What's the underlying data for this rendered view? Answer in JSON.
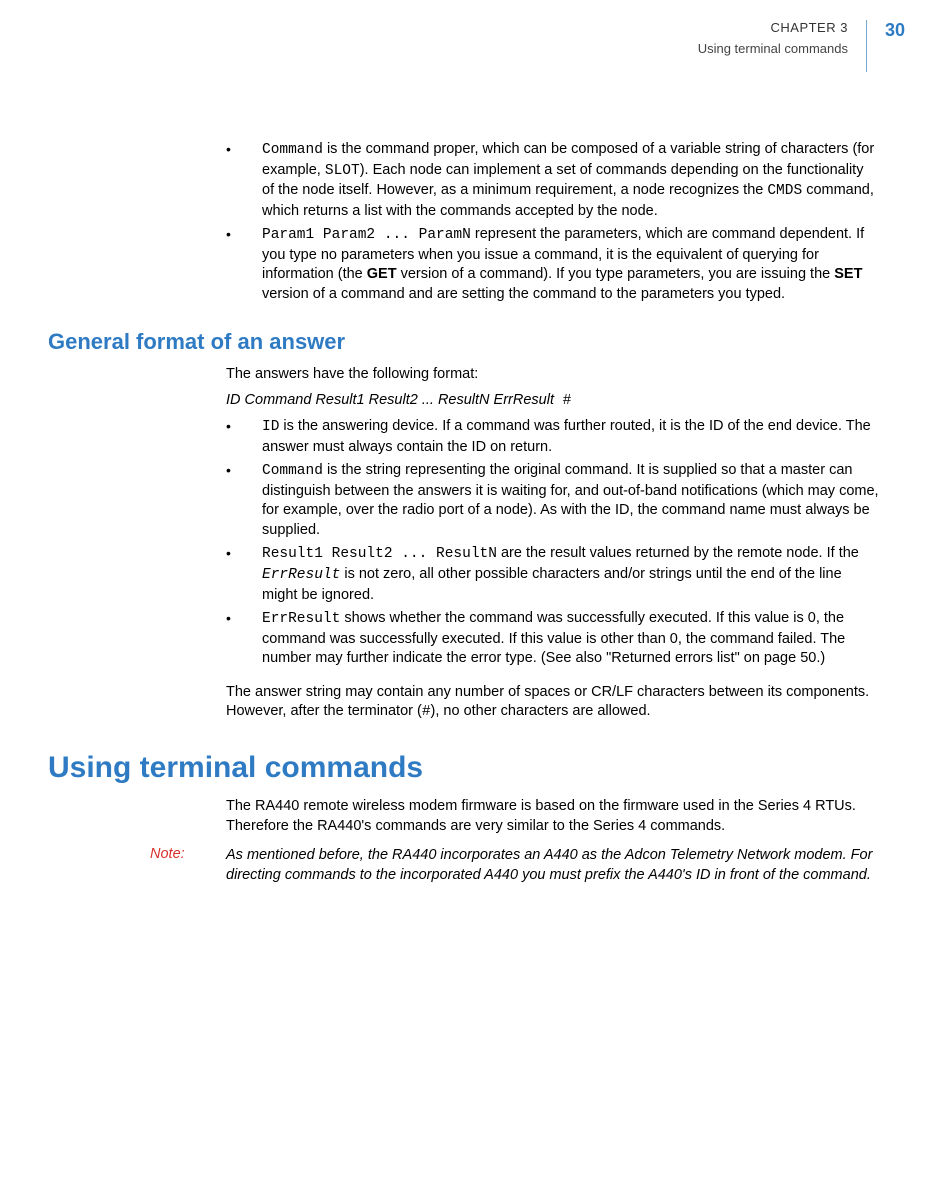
{
  "header": {
    "chapter": "CHAPTER 3",
    "subtitle": "Using terminal commands",
    "page": "30"
  },
  "colors": {
    "accent": "#2e7bc4",
    "note": "#d9302c",
    "divider": "#7aa8d4"
  },
  "b1": {
    "code1": "Command",
    "t1": " is the command proper, which can be composed of a variable string of characters (for example, ",
    "code2": "SLOT",
    "t2": "). Each node can implement a set of commands depending on the functionality of the node itself. However, as a minimum requirement, a node recognizes the ",
    "code3": "CMDS",
    "t3": " command, which returns a list with the commands accepted by the node."
  },
  "b2": {
    "code1": "Param1 Param2 ... ParamN",
    "t1": " represent the parameters, which are command dependent. If you type no parameters when you issue a command, it is the equivalent of querying for information (the ",
    "bold1": "GET",
    "t2": " version of a command). If you type parameters, you are issuing the ",
    "bold2": "SET",
    "t3": " version of a command and are setting the command to the parameters you typed."
  },
  "h1": "General format of an answer",
  "p1": "The answers have the following format:",
  "fmt": {
    "italic": "ID Command Result1 Result2 ... ResultN ErrResult",
    "mono": " #"
  },
  "a1": {
    "code1": "ID",
    "t1": " is the answering device. If a command was further routed, it is the ID of the end device. The answer must always contain the ID on return."
  },
  "a2": {
    "code1": "Command",
    "t1": " is the string representing the original command. It is supplied so that a master can distinguish between the answers it is waiting for, and out-of-band notifications (which may come, for example, over the radio port of a node). As with the ID, the command name must always be supplied."
  },
  "a3": {
    "code1": "Result1 Result2 ... ResultN",
    "t1": " are the result values returned by the remote node. If the ",
    "codeit": "ErrResult",
    "t2": " is not zero, all other possible characters and/or strings until the end of the line might be ignored."
  },
  "a4": {
    "code1": "ErrResult",
    "t1": " shows whether the command was successfully executed. If this value is 0, the command was successfully executed. If this value is other than 0, the command failed. The number may further indicate the error type. (See also \"Returned errors list\" on page 50.)"
  },
  "p2a": "The answer string may contain any number of spaces or CR/LF characters between its components. However, after the terminator (",
  "p2code": "#",
  "p2b": "), no other characters are allowed.",
  "h2": "Using terminal commands",
  "p3": "The RA440 remote wireless modem firmware is based on the firmware used in the Series 4 RTUs. Therefore the RA440's commands are very similar to the Series 4 commands.",
  "note": {
    "label": "Note:",
    "body": "As mentioned before, the RA440 incorporates an A440 as the Adcon Telemetry Network modem. For directing commands to the incorporated A440 you must prefix the A440's ID in front of the command."
  }
}
